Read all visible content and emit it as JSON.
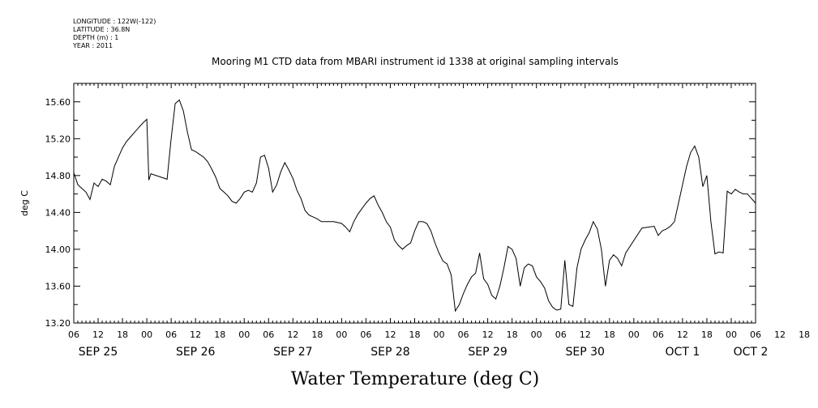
{
  "header": {
    "longitude": "LONGITUDE : 122W(-122)",
    "latitude": "LATITUDE : 36.8N",
    "depth": "DEPTH (m) : 1",
    "year": "YEAR : 2011"
  },
  "chart_data": {
    "type": "line",
    "title": "Mooring M1 CTD data from MBARI instrument id 1338 at original sampling intervals",
    "xlabel": "Water Temperature (deg C)",
    "ylabel": "deg C",
    "ylim": [
      13.2,
      15.8
    ],
    "yticks": [
      "13.20",
      "13.60",
      "14.00",
      "14.40",
      "14.80",
      "15.20",
      "15.60"
    ],
    "xlim": [
      "2011-09-25T06:00",
      "2011-10-02T06:00"
    ],
    "x_hour_ticks": [
      "06",
      "12",
      "18",
      "00",
      "06",
      "12",
      "18",
      "00",
      "06",
      "12",
      "18",
      "00",
      "06",
      "12",
      "18",
      "00",
      "06",
      "12",
      "18",
      "00",
      "06",
      "12",
      "18",
      "00",
      "06",
      "12",
      "18",
      "00",
      "06",
      "12",
      "18",
      "00",
      "06"
    ],
    "x_day_labels": [
      {
        "text": "SEP 25",
        "x": "2011-09-25T12:00"
      },
      {
        "text": "SEP 26",
        "x": "2011-09-26T12:00"
      },
      {
        "text": "SEP 27",
        "x": "2011-09-27T12:00"
      },
      {
        "text": "SEP 28",
        "x": "2011-09-28T12:00"
      },
      {
        "text": "SEP 29",
        "x": "2011-09-29T12:00"
      },
      {
        "text": "SEP 30",
        "x": "2011-09-30T12:00"
      },
      {
        "text": "OCT  1",
        "x": "2011-10-01T12:00"
      },
      {
        "text": "OCT  2",
        "x": "2011-10-02T06:00"
      }
    ],
    "grid": false,
    "series": [
      {
        "values": [
          [
            "2011-09-25T06:00",
            14.83
          ],
          [
            "2011-09-25T07:00",
            14.7
          ],
          [
            "2011-09-25T08:00",
            14.66
          ],
          [
            "2011-09-25T09:00",
            14.62
          ],
          [
            "2011-09-25T10:00",
            14.54
          ],
          [
            "2011-09-25T11:00",
            14.72
          ],
          [
            "2011-09-25T12:00",
            14.68
          ],
          [
            "2011-09-25T13:00",
            14.76
          ],
          [
            "2011-09-25T14:00",
            14.74
          ],
          [
            "2011-09-25T15:00",
            14.7
          ],
          [
            "2011-09-25T16:00",
            14.9
          ],
          [
            "2011-09-25T17:00",
            15.0
          ],
          [
            "2011-09-25T18:00",
            15.1
          ],
          [
            "2011-09-25T19:00",
            15.17
          ],
          [
            "2011-09-25T20:00",
            15.22
          ],
          [
            "2011-09-25T21:00",
            15.27
          ],
          [
            "2011-09-25T22:00",
            15.32
          ],
          [
            "2011-09-25T23:00",
            15.37
          ],
          [
            "2011-09-26T00:00",
            15.41
          ],
          [
            "2011-09-26T00:30",
            14.75
          ],
          [
            "2011-09-26T01:00",
            14.82
          ],
          [
            "2011-09-26T03:00",
            14.79
          ],
          [
            "2011-09-26T05:00",
            14.76
          ],
          [
            "2011-09-26T06:00",
            15.2
          ],
          [
            "2011-09-26T07:00",
            15.58
          ],
          [
            "2011-09-26T08:00",
            15.62
          ],
          [
            "2011-09-26T09:00",
            15.5
          ],
          [
            "2011-09-26T10:00",
            15.27
          ],
          [
            "2011-09-26T11:00",
            15.08
          ],
          [
            "2011-09-26T12:00",
            15.06
          ],
          [
            "2011-09-26T13:00",
            15.03
          ],
          [
            "2011-09-26T14:00",
            15.0
          ],
          [
            "2011-09-26T15:00",
            14.95
          ],
          [
            "2011-09-26T16:00",
            14.87
          ],
          [
            "2011-09-26T17:00",
            14.78
          ],
          [
            "2011-09-26T18:00",
            14.66
          ],
          [
            "2011-09-26T19:00",
            14.62
          ],
          [
            "2011-09-26T20:00",
            14.58
          ],
          [
            "2011-09-26T21:00",
            14.52
          ],
          [
            "2011-09-26T22:00",
            14.5
          ],
          [
            "2011-09-26T23:00",
            14.55
          ],
          [
            "2011-09-27T00:00",
            14.62
          ],
          [
            "2011-09-27T01:00",
            14.64
          ],
          [
            "2011-09-27T02:00",
            14.62
          ],
          [
            "2011-09-27T03:00",
            14.72
          ],
          [
            "2011-09-27T04:00",
            15.0
          ],
          [
            "2011-09-27T05:00",
            15.02
          ],
          [
            "2011-09-27T06:00",
            14.88
          ],
          [
            "2011-09-27T07:00",
            14.62
          ],
          [
            "2011-09-27T08:00",
            14.7
          ],
          [
            "2011-09-27T09:00",
            14.84
          ],
          [
            "2011-09-27T10:00",
            14.94
          ],
          [
            "2011-09-27T11:00",
            14.86
          ],
          [
            "2011-09-27T12:00",
            14.77
          ],
          [
            "2011-09-27T13:00",
            14.64
          ],
          [
            "2011-09-27T14:00",
            14.55
          ],
          [
            "2011-09-27T15:00",
            14.42
          ],
          [
            "2011-09-27T16:00",
            14.37
          ],
          [
            "2011-09-27T17:00",
            14.35
          ],
          [
            "2011-09-27T18:00",
            14.33
          ],
          [
            "2011-09-27T19:00",
            14.3
          ],
          [
            "2011-09-27T20:00",
            14.3
          ],
          [
            "2011-09-27T22:00",
            14.3
          ],
          [
            "2011-09-28T00:00",
            14.28
          ],
          [
            "2011-09-28T01:00",
            14.24
          ],
          [
            "2011-09-28T02:00",
            14.19
          ],
          [
            "2011-09-28T03:00",
            14.3
          ],
          [
            "2011-09-28T04:00",
            14.38
          ],
          [
            "2011-09-28T05:00",
            14.44
          ],
          [
            "2011-09-28T06:00",
            14.5
          ],
          [
            "2011-09-28T07:00",
            14.55
          ],
          [
            "2011-09-28T08:00",
            14.58
          ],
          [
            "2011-09-28T09:00",
            14.48
          ],
          [
            "2011-09-28T10:00",
            14.4
          ],
          [
            "2011-09-28T11:00",
            14.3
          ],
          [
            "2011-09-28T12:00",
            14.24
          ],
          [
            "2011-09-28T13:00",
            14.1
          ],
          [
            "2011-09-28T14:00",
            14.04
          ],
          [
            "2011-09-28T15:00",
            14.0
          ],
          [
            "2011-09-28T16:00",
            14.04
          ],
          [
            "2011-09-28T17:00",
            14.07
          ],
          [
            "2011-09-28T18:00",
            14.2
          ],
          [
            "2011-09-28T19:00",
            14.3
          ],
          [
            "2011-09-28T20:00",
            14.3
          ],
          [
            "2011-09-28T21:00",
            14.28
          ],
          [
            "2011-09-28T22:00",
            14.2
          ],
          [
            "2011-09-28T23:00",
            14.07
          ],
          [
            "2011-09-29T00:00",
            13.96
          ],
          [
            "2011-09-29T01:00",
            13.87
          ],
          [
            "2011-09-29T02:00",
            13.84
          ],
          [
            "2011-09-29T03:00",
            13.72
          ],
          [
            "2011-09-29T04:00",
            13.33
          ],
          [
            "2011-09-29T05:00",
            13.4
          ],
          [
            "2011-09-29T06:00",
            13.52
          ],
          [
            "2011-09-29T07:00",
            13.62
          ],
          [
            "2011-09-29T08:00",
            13.7
          ],
          [
            "2011-09-29T09:00",
            13.74
          ],
          [
            "2011-09-29T10:00",
            13.96
          ],
          [
            "2011-09-29T11:00",
            13.68
          ],
          [
            "2011-09-29T12:00",
            13.62
          ],
          [
            "2011-09-29T13:00",
            13.5
          ],
          [
            "2011-09-29T14:00",
            13.46
          ],
          [
            "2011-09-29T15:00",
            13.6
          ],
          [
            "2011-09-29T16:00",
            13.8
          ],
          [
            "2011-09-29T17:00",
            14.03
          ],
          [
            "2011-09-29T18:00",
            14.0
          ],
          [
            "2011-09-29T19:00",
            13.9
          ],
          [
            "2011-09-29T20:00",
            13.6
          ],
          [
            "2011-09-29T21:00",
            13.8
          ],
          [
            "2011-09-29T22:00",
            13.84
          ],
          [
            "2011-09-29T23:00",
            13.82
          ],
          [
            "2011-09-30T00:00",
            13.7
          ],
          [
            "2011-09-30T01:00",
            13.65
          ],
          [
            "2011-09-30T02:00",
            13.58
          ],
          [
            "2011-09-30T03:00",
            13.44
          ],
          [
            "2011-09-30T04:00",
            13.37
          ],
          [
            "2011-09-30T05:00",
            13.34
          ],
          [
            "2011-09-30T06:00",
            13.35
          ],
          [
            "2011-09-30T07:00",
            13.88
          ],
          [
            "2011-09-30T08:00",
            13.4
          ],
          [
            "2011-09-30T09:00",
            13.38
          ],
          [
            "2011-09-30T10:00",
            13.8
          ],
          [
            "2011-09-30T11:00",
            14.0
          ],
          [
            "2011-09-30T12:00",
            14.1
          ],
          [
            "2011-09-30T13:00",
            14.18
          ],
          [
            "2011-09-30T14:00",
            14.3
          ],
          [
            "2011-09-30T15:00",
            14.22
          ],
          [
            "2011-09-30T16:00",
            14.0
          ],
          [
            "2011-09-30T17:00",
            13.6
          ],
          [
            "2011-09-30T18:00",
            13.88
          ],
          [
            "2011-09-30T19:00",
            13.94
          ],
          [
            "2011-09-30T20:00",
            13.9
          ],
          [
            "2011-09-30T21:00",
            13.82
          ],
          [
            "2011-09-30T22:00",
            13.96
          ],
          [
            "2011-10-01T02:00",
            14.23
          ],
          [
            "2011-10-01T05:00",
            14.25
          ],
          [
            "2011-10-01T06:00",
            14.15
          ],
          [
            "2011-10-01T07:00",
            14.2
          ],
          [
            "2011-10-01T08:00",
            14.22
          ],
          [
            "2011-10-01T09:00",
            14.25
          ],
          [
            "2011-10-01T10:00",
            14.3
          ],
          [
            "2011-10-01T11:00",
            14.5
          ],
          [
            "2011-10-01T12:00",
            14.7
          ],
          [
            "2011-10-01T13:00",
            14.9
          ],
          [
            "2011-10-01T14:00",
            15.05
          ],
          [
            "2011-10-01T15:00",
            15.12
          ],
          [
            "2011-10-01T16:00",
            15.0
          ],
          [
            "2011-10-01T17:00",
            14.68
          ],
          [
            "2011-10-01T18:00",
            14.8
          ],
          [
            "2011-10-01T19:00",
            14.3
          ],
          [
            "2011-10-01T20:00",
            13.95
          ],
          [
            "2011-10-01T21:00",
            13.97
          ],
          [
            "2011-10-01T22:00",
            13.96
          ],
          [
            "2011-10-01T23:00",
            14.63
          ],
          [
            "2011-10-02T00:00",
            14.6
          ],
          [
            "2011-10-02T01:00",
            14.65
          ],
          [
            "2011-10-02T02:00",
            14.62
          ],
          [
            "2011-10-02T03:00",
            14.6
          ],
          [
            "2011-10-02T04:00",
            14.6
          ],
          [
            "2011-10-02T05:00",
            14.55
          ],
          [
            "2011-10-02T06:00",
            14.5
          ]
        ]
      }
    ]
  }
}
